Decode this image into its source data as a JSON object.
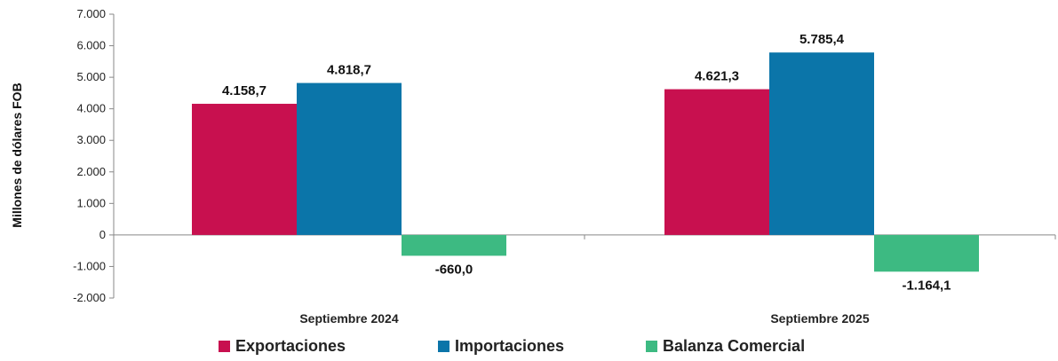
{
  "chart_data": {
    "type": "bar",
    "categories": [
      "Septiembre 2024",
      "Septiembre 2025"
    ],
    "series": [
      {
        "name": "Exportaciones",
        "color": "#C8104F",
        "values": [
          4158.7,
          4621.3
        ],
        "labels": [
          "4.158,7",
          "4.621,3"
        ]
      },
      {
        "name": "Importaciones",
        "color": "#0B75A9",
        "values": [
          4818.7,
          5785.4
        ],
        "labels": [
          "4.818,7",
          "5.785,4"
        ]
      },
      {
        "name": "Balanza Comercial",
        "color": "#3DBA82",
        "values": [
          -660.0,
          -1164.1
        ],
        "labels": [
          "-660,0",
          "-1.164,1"
        ]
      }
    ],
    "ylabel": "Millones de dólares FOB",
    "ylim": [
      -2000,
      7000
    ],
    "yticks": [
      -2000,
      -1000,
      0,
      1000,
      2000,
      3000,
      4000,
      5000,
      6000,
      7000
    ],
    "ytick_labels": [
      "-2.000",
      "-1.000",
      "0",
      "1.000",
      "2.000",
      "3.000",
      "4.000",
      "5.000",
      "6.000",
      "7.000"
    ],
    "grid": false,
    "legend": "bottom"
  }
}
